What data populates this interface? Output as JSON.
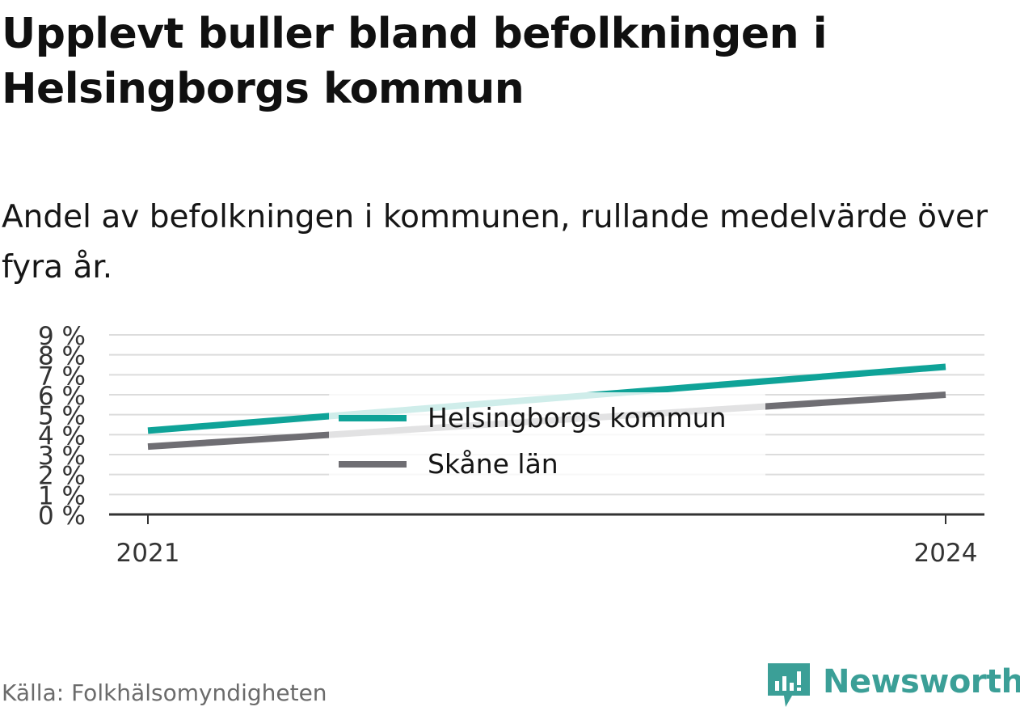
{
  "title": "Upplevt buller bland befolkningen i Helsingborgs kommun",
  "subtitle": "Andel av befolkningen i kommunen, rullande medelvärde över fyra år.",
  "source": "Källa: Folkhälsomyndigheten",
  "brand": "Newsworthy",
  "colors": {
    "series_1": "#0fa398",
    "series_2": "#6f6e73",
    "brand": "#3b9f97",
    "grid": "#dcdcdc",
    "axis": "#333333"
  },
  "chart_data": {
    "type": "line",
    "x": [
      "2021",
      "2024"
    ],
    "xticks": [
      "2021",
      "2024"
    ],
    "series": [
      {
        "name": "Helsingborgs kommun",
        "values": [
          4.2,
          7.4
        ],
        "color": "#0fa398"
      },
      {
        "name": "Skåne län",
        "values": [
          3.4,
          6.0
        ],
        "color": "#6f6e73"
      }
    ],
    "ylim": [
      0,
      9
    ],
    "yticks": [
      "0 %",
      "1 %",
      "2 %",
      "3 %",
      "4 %",
      "5 %",
      "6 %",
      "7 %",
      "8 %",
      "9 %"
    ],
    "grid": true,
    "legend": "center"
  }
}
